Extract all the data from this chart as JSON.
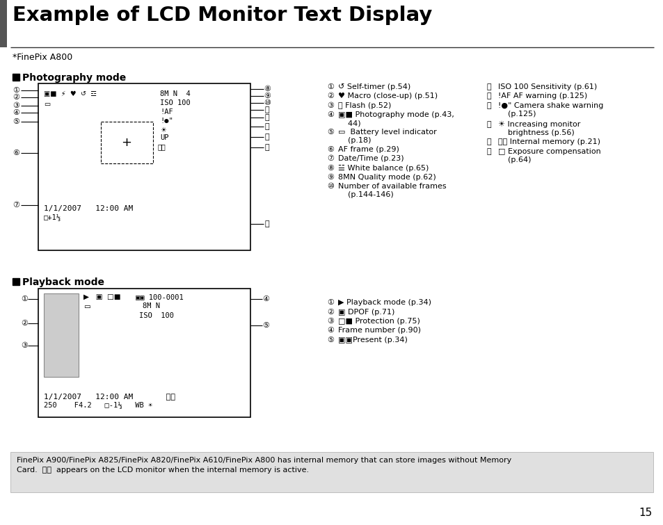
{
  "title": "Example of LCD Monitor Text Display",
  "subtitle": "*FinePix A800",
  "page_number": "15",
  "bg_color": "#ffffff",
  "title_color": "#000000",
  "section1_label": "Photography mode",
  "section2_label": "Playback mode",
  "footer_bg": "#e0e0e0",
  "footer_text1": "FinePix A900/FinePix A825/FinePix A820/FinePix A610/FinePix A800 has internal memory that can store images without Memory",
  "footer_text2": "Card.  ⓘⓓ  appears on the LCD monitor when the internal memory is active."
}
